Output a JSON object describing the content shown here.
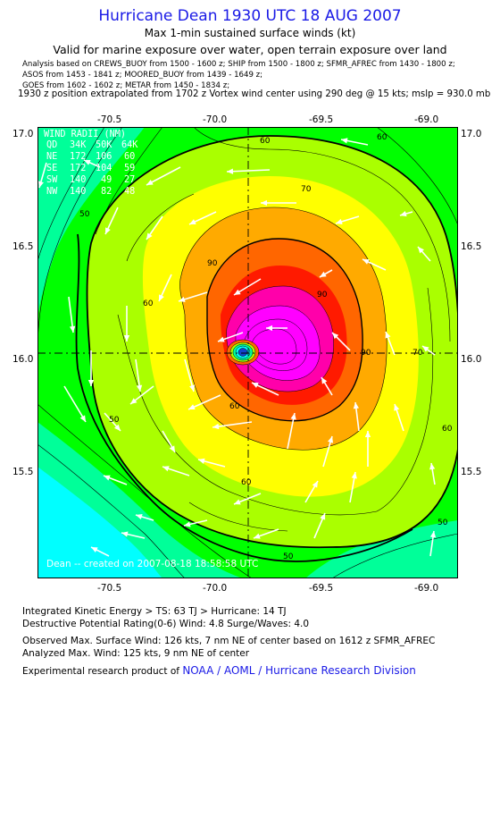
{
  "header": {
    "title": "Hurricane Dean 1930 UTC 18 AUG 2007",
    "subtitle": "Max 1-min sustained surface winds (kt)",
    "validity": "Valid for marine exposure over water, open terrain exposure over land",
    "analysis_line1": "Analysis based on  CREWS_BUOY from 1500 - 1600 z;  SHIP from 1500 - 1800 z;  SFMR_AFREC from 1430 - 1800 z;",
    "analysis_line2": "ASOS from 1453 - 1841 z;  MOORED_BUOY from 1439 - 1649 z;",
    "analysis_line3": "GOES from 1602 - 1602 z;  METAR from 1450 - 1834 z;",
    "position_line": "1930 z position extrapolated from 1702 z Vortex wind center using 290 deg @ 15 kts; mslp = 930.0 mb"
  },
  "axes": {
    "lon_ticks": [
      "-70.5",
      "-70.0",
      "-69.5",
      "-69.0"
    ],
    "lat_ticks": [
      "17.0",
      "16.5",
      "16.0",
      "15.5"
    ]
  },
  "map": {
    "storm_name": "Dean",
    "lon_range": [
      -70.8,
      -68.85
    ],
    "lat_range": [
      15.0,
      17.05
    ],
    "center": {
      "lon": -69.85,
      "lat": 16.03
    },
    "contour_levels_labeled": [
      "50",
      "60",
      "70",
      "90"
    ],
    "credit": "Dean -- created on 2007-08-18 18:58:58 UTC"
  },
  "wind_radii": {
    "header": "WIND RADII (NM)",
    "columns": [
      "QD",
      "34K",
      "50K",
      "64K"
    ],
    "rows": [
      [
        "NE",
        "172",
        "106",
        "60"
      ],
      [
        "SE",
        "172",
        "104",
        "59"
      ],
      [
        "SW",
        "140",
        "49",
        "27"
      ],
      [
        "NW",
        "140",
        "82",
        "48"
      ]
    ]
  },
  "footer": {
    "ike": "Integrated Kinetic Energy > TS: 63 TJ   > Hurricane: 14 TJ",
    "destructive": "Destructive Potential Rating(0-6)  Wind: 4.8 Surge/Waves: 4.0",
    "observed": "Observed Max. Surface Wind: 126 kts, 7 nm NE of center based on 1612 z SFMR_AFREC",
    "analyzed": "Analyzed Max. Wind: 125 kts, 9 nm NE of center",
    "product_prefix": "Experimental research product of",
    "product_org": "NOAA / AOML / Hurricane Research Division"
  },
  "colors": {
    "title": "#1a1ae6",
    "band_30": "#00ffff",
    "band_40": "#00ff99",
    "band_50": "#00ff00",
    "band_60": "#aaff00",
    "band_70": "#ffff00",
    "band_80": "#ffaa00",
    "band_90": "#ff6600",
    "band_100": "#ff1a00",
    "band_110": "#ff00aa",
    "band_120": "#ff00ff",
    "eye": "#1144cc"
  }
}
